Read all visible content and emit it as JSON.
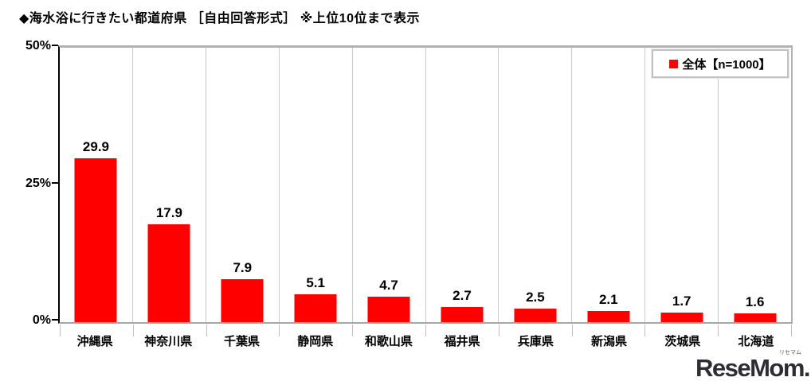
{
  "title": "◆海水浴に行きたい都道府県 ［自由回答形式］ ※上位10位まで表示",
  "legend": {
    "label": "全体【n=1000】",
    "marker_color": "#ff0000"
  },
  "watermark": {
    "text": "ReseMom.",
    "ruby": "リセマム"
  },
  "chart_data": {
    "type": "bar",
    "title": "◆海水浴に行きたい都道府県 ［自由回答形式］ ※上位10位まで表示",
    "categories": [
      "沖縄県",
      "神奈川県",
      "千葉県",
      "静岡県",
      "和歌山県",
      "福井県",
      "兵庫県",
      "新潟県",
      "茨城県",
      "北海道"
    ],
    "values": [
      29.9,
      17.9,
      7.9,
      5.1,
      4.7,
      2.7,
      2.5,
      2.1,
      1.7,
      1.6
    ],
    "value_labels": [
      "29.9",
      "17.9",
      "7.9",
      "5.1",
      "4.7",
      "2.7",
      "2.5",
      "2.1",
      "1.7",
      "1.6"
    ],
    "series_name": "全体【n=1000】",
    "xlabel": "",
    "ylabel": "%",
    "ylim": [
      0,
      50
    ],
    "yticks": [
      {
        "label": "0%",
        "value": 0
      },
      {
        "label": "25%",
        "value": 25
      },
      {
        "label": "50%",
        "value": 50
      }
    ],
    "bar_color": "#ff0000",
    "grid": "vertical-category-separators",
    "legend_position": "top-right"
  }
}
